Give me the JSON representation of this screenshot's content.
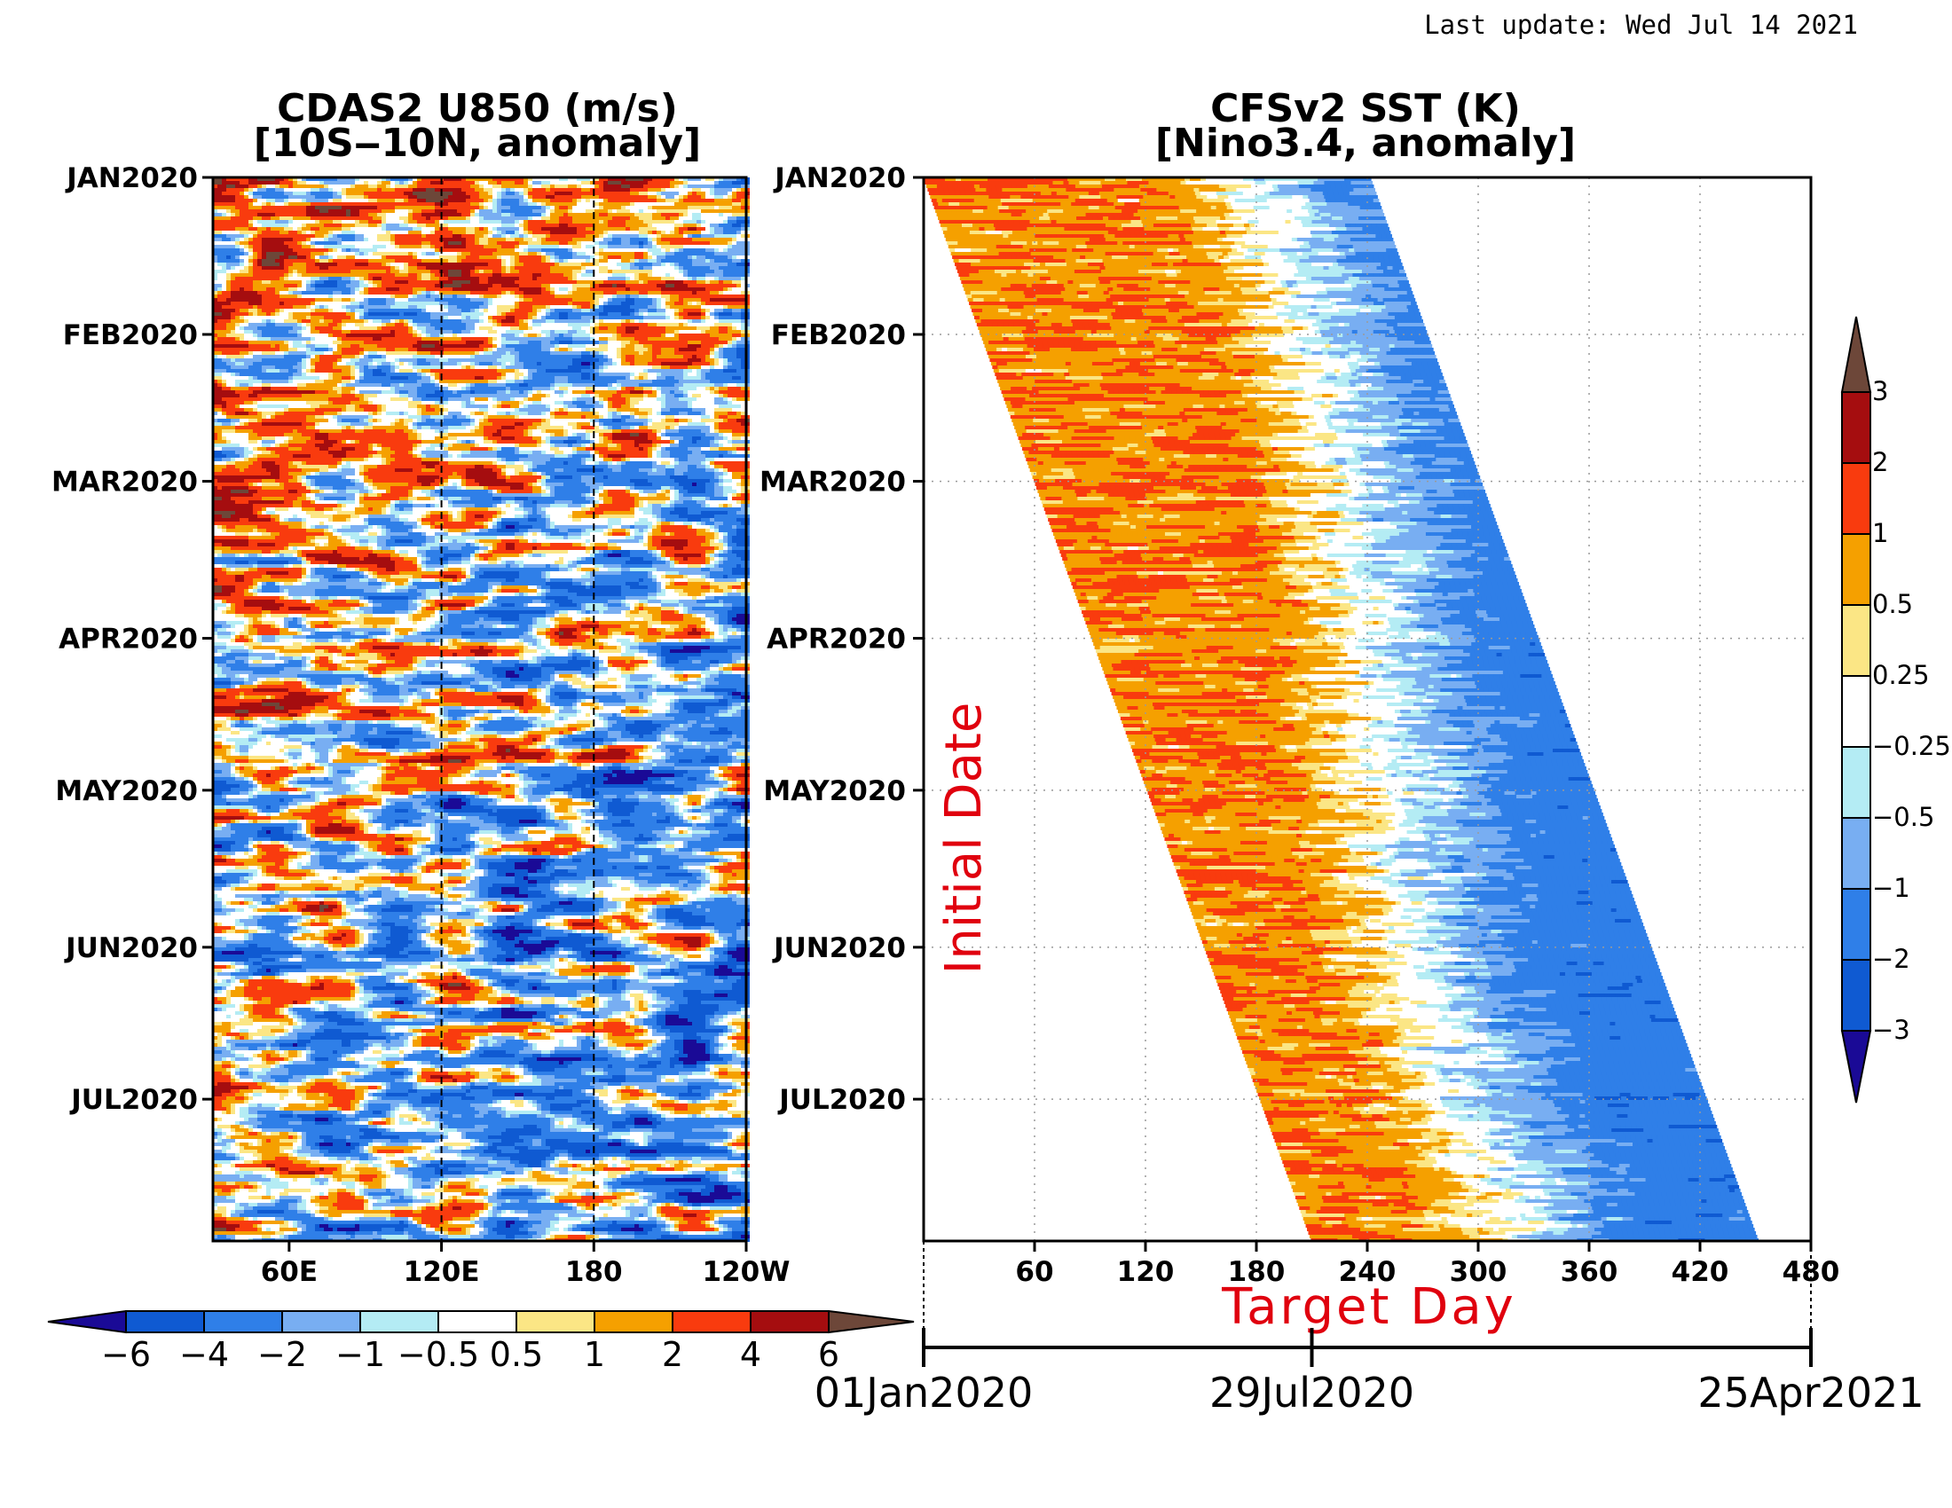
{
  "header": {
    "last_update": "Last update: Wed Jul 14 2021"
  },
  "chart_data": [
    {
      "type": "heatmap",
      "title": "CDAS2 U850 (m/s)",
      "subtitle": "[10S‒10N, anomaly]",
      "x_ticks": [
        "60E",
        "120E",
        "180",
        "120W"
      ],
      "x_tick_lon": [
        60,
        120,
        180,
        240
      ],
      "xlim": [
        30,
        240
      ],
      "y_ticks": [
        "JAN2020",
        "FEB2020",
        "MAR2020",
        "APR2020",
        "MAY2020",
        "JUN2020",
        "JUL2020"
      ],
      "y_tick_day": [
        0,
        31,
        60,
        91,
        121,
        152,
        182
      ],
      "ylim_days": [
        0,
        210
      ],
      "reference_lines_lon": [
        120,
        180
      ],
      "colorbar": {
        "orientation": "horizontal",
        "levels": [
          "−6",
          "−4",
          "−2",
          "−1",
          "−0.5",
          "0.5",
          "1",
          "2",
          "4",
          "6"
        ],
        "colors": [
          "#1a0a96",
          "#0f5ad2",
          "#2f7fe8",
          "#78aef2",
          "#b4ecf4",
          "#ffffff",
          "#fbe685",
          "#f5a000",
          "#f93b0e",
          "#a50d0f",
          "#6d4739"
        ]
      }
    },
    {
      "type": "heatmap",
      "title": "CFSv2 SST (K)",
      "subtitle": "[Nino3.4, anomaly]",
      "x_ticks": [
        "60",
        "120",
        "180",
        "240",
        "300",
        "360",
        "420",
        "480"
      ],
      "x_tick_vals": [
        60,
        120,
        180,
        240,
        300,
        360,
        420,
        480
      ],
      "xlim": [
        0,
        480
      ],
      "xlabel": "Target Day",
      "ylabel": "Initial Date",
      "y_ticks": [
        "JAN2020",
        "FEB2020",
        "MAR2020",
        "APR2020",
        "MAY2020",
        "JUN2020",
        "JUL2020"
      ],
      "y_tick_day": [
        0,
        31,
        60,
        91,
        121,
        152,
        182
      ],
      "ylim_days": [
        0,
        210
      ],
      "date_axis": [
        "01Jan2020",
        "29Jul2020",
        "25Apr2021"
      ],
      "date_axis_day": [
        0,
        210,
        480
      ],
      "colorbar": {
        "orientation": "vertical",
        "levels": [
          "3",
          "2",
          "1",
          "0.5",
          "0.25",
          "−0.25",
          "−0.5",
          "−1",
          "−2",
          "−3"
        ],
        "colors": [
          "#6d4739",
          "#a50d0f",
          "#f93b0e",
          "#f5a000",
          "#fbe685",
          "#ffffff",
          "#b4ecf4",
          "#78aef2",
          "#2f7fe8",
          "#0f5ad2",
          "#1a0a96"
        ]
      }
    }
  ]
}
